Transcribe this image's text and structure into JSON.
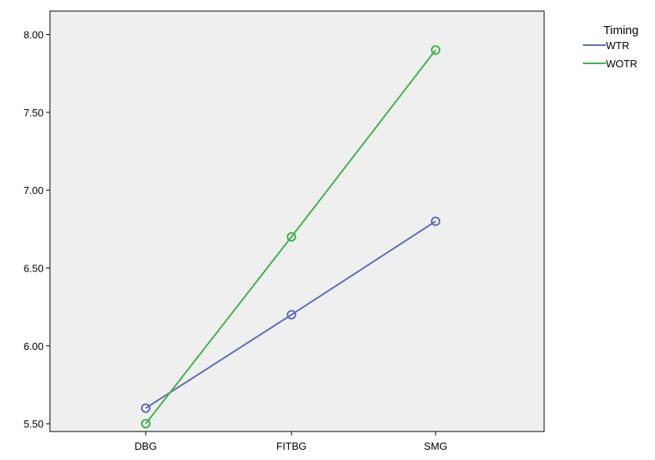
{
  "chart_data": {
    "type": "line",
    "title": "",
    "xlabel": "",
    "ylabel": "",
    "categories": [
      "DBG",
      "FITBG",
      "SMG"
    ],
    "ylim": [
      5.45,
      8.15
    ],
    "yticks": [
      5.5,
      6.0,
      6.5,
      7.0,
      7.5,
      8.0
    ],
    "ytick_labels": [
      "5.50",
      "6.00",
      "6.50",
      "7.00",
      "7.50",
      "8.00"
    ],
    "grid": false,
    "plot_background": "#efefef",
    "legend": {
      "title": "Timing",
      "placement": "top-right, outside plot area"
    },
    "series": [
      {
        "name": "WTR",
        "color": "#5a6db4",
        "marker": "open-circle",
        "values": [
          5.6,
          6.2,
          6.8
        ]
      },
      {
        "name": "WOTR",
        "color": "#3fb14a",
        "marker": "open-circle",
        "values": [
          5.5,
          6.7,
          7.9
        ]
      }
    ]
  }
}
